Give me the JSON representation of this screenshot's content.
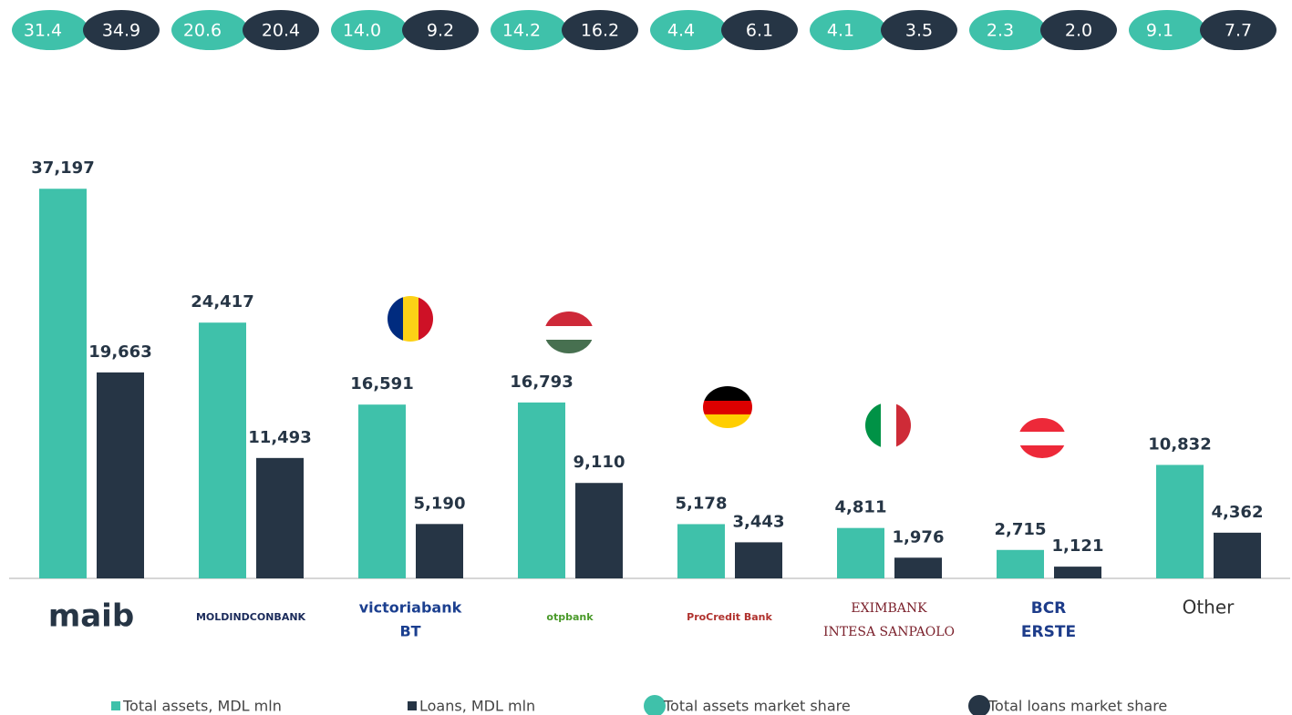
{
  "chart_data": {
    "type": "bar",
    "categories": [
      [
        "maib"
      ],
      [
        "MOLDINDCONBANK"
      ],
      [
        "victoriabank",
        "BT"
      ],
      [
        "otpbank"
      ],
      [
        "ProCredit Bank"
      ],
      [
        "EXIMBANK",
        "INTESA SANPAOLO"
      ],
      [
        "BCR",
        "ERSTE"
      ],
      [
        "Other"
      ]
    ],
    "ylim": [
      0,
      40000
    ],
    "series": [
      {
        "name": "Total assets, MDL mln",
        "color": "#3fc1aa",
        "values": [
          37197,
          24417,
          16591,
          16793,
          5178,
          4811,
          2715,
          10832
        ],
        "value_labels": [
          "37,197",
          "24,417",
          "16,591",
          "16,793",
          "5,178",
          "4,811",
          "2,715",
          "10,832"
        ]
      },
      {
        "name": "Loans, MDL mln",
        "color": "#263545",
        "values": [
          19663,
          11493,
          5190,
          9110,
          3443,
          1976,
          1121,
          4362
        ],
        "value_labels": [
          "19,663",
          "11,493",
          "5,190",
          "9,110",
          "3,443",
          "1,976",
          "1,121",
          "4,362"
        ]
      }
    ],
    "share_series": [
      {
        "name": "Total assets market share",
        "color": "#3fc1aa",
        "values": [
          31.4,
          20.6,
          14.0,
          14.2,
          4.4,
          4.1,
          2.3,
          9.1
        ],
        "value_labels": [
          "31.4",
          "20.6",
          "14.0",
          "14.2",
          "4.4",
          "4.1",
          "2.3",
          "9.1"
        ]
      },
      {
        "name": "Total loans market share",
        "color": "#263545",
        "values": [
          34.9,
          20.4,
          9.2,
          16.2,
          6.1,
          3.5,
          2.0,
          7.7
        ],
        "value_labels": [
          "34.9",
          "20.4",
          "9.2",
          "16.2",
          "6.1",
          "3.5",
          "2.0",
          "7.7"
        ]
      }
    ]
  }
}
